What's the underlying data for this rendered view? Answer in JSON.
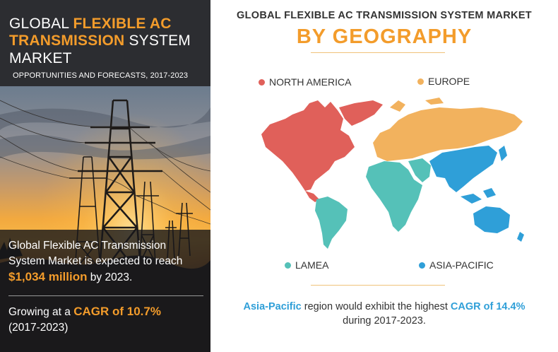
{
  "left_panel": {
    "title_line1_prefix": "GLOBAL ",
    "title_line1_highlight": "FLEXIBLE AC",
    "title_line2_highlight": "TRANSMISSION",
    "title_line2_suffix": " SYSTEM",
    "title_line3": "MARKET",
    "subtitle": "OPPORTUNITIES AND FORECASTS, 2017-2023",
    "stat_line1": "Global Flexible AC Transmission",
    "stat_line2": "System Market is expected to reach",
    "stat_value": "$1,034 million",
    "stat_line3_suffix": " by 2023.",
    "growth_prefix": "Growing at a ",
    "growth_highlight": "CAGR of 10.7%",
    "growth_years": "(2017-2023)"
  },
  "right_panel": {
    "title": "GLOBAL FLEXIBLE AC TRANSMISSION SYSTEM MARKET",
    "subtitle": "BY GEOGRAPHY",
    "legend": [
      {
        "label": "NORTH AMERICA",
        "color": "#e0605a"
      },
      {
        "label": "EUROPE",
        "color": "#f2b25e"
      },
      {
        "label": "LAMEA",
        "color": "#55c1b8"
      },
      {
        "label": "ASIA-PACIFIC",
        "color": "#2f9fd8"
      }
    ],
    "footnote_region": "Asia-Pacific",
    "footnote_mid": " region would exhibit the highest ",
    "footnote_cagr": "CAGR of 14.4%",
    "footnote_line2": "during 2017-2023."
  },
  "colors": {
    "accent_orange": "#f39c2b",
    "accent_blue": "#2f9fd8",
    "dark_panel": "#2c2d31"
  },
  "icons": [
    "world-map-graphic",
    "power-line-towers-photo"
  ]
}
